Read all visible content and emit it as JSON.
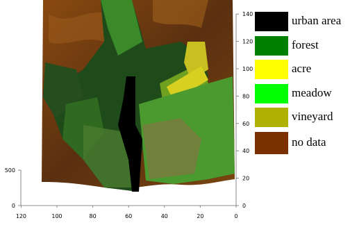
{
  "legend": [
    {
      "label": "urban area",
      "color": "#000000"
    },
    {
      "label": "forest",
      "color": "#008000"
    },
    {
      "label": "acre",
      "color": "#ffff00"
    },
    {
      "label": "meadow",
      "color": "#00ff00"
    },
    {
      "label": "vineyard",
      "color": "#b0b000"
    },
    {
      "label": "no data",
      "color": "#7a3000"
    }
  ],
  "axes": {
    "x_ticks": [
      120,
      100,
      80,
      60,
      40,
      20,
      0
    ],
    "y_ticks": [
      0,
      20,
      40,
      60,
      80,
      100,
      120,
      140
    ],
    "z_ticks": [
      0,
      500
    ]
  }
}
